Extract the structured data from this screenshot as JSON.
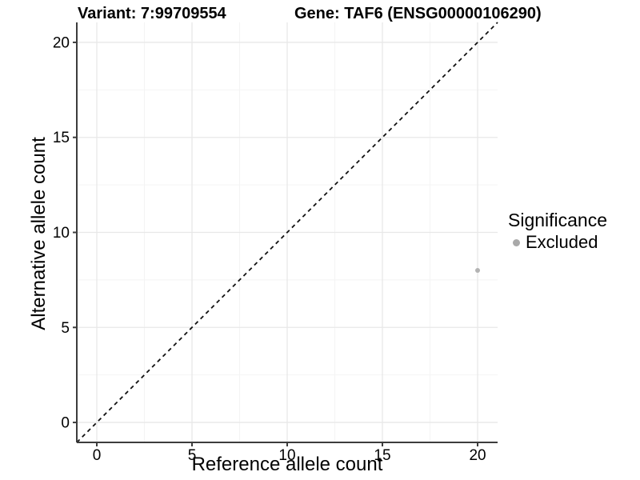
{
  "header": {
    "variant_title": "Variant: 7:99709554",
    "gene_title": "Gene: TAF6 (ENSG00000106290)"
  },
  "axes": {
    "x": {
      "label": "Reference allele count",
      "ticks": [
        0,
        5,
        10,
        15,
        20
      ]
    },
    "y": {
      "label": "Alternative allele count",
      "ticks": [
        0,
        5,
        10,
        15,
        20
      ]
    }
  },
  "legend": {
    "title": "Significance",
    "items": [
      {
        "label": "Excluded",
        "color": "#a9a9a9"
      }
    ]
  },
  "colors": {
    "axis": "#3c3c3c",
    "grid_major": "#e8e8e8",
    "grid_minor": "#f4f4f4",
    "text": "#000000",
    "point": "#b3b3b3",
    "reference_line": "#111111"
  },
  "chart_data": {
    "type": "scatter",
    "title": "Variant: 7:99709554    Gene: TAF6 (ENSG00000106290)",
    "xlabel": "Reference allele count",
    "ylabel": "Alternative allele count",
    "xlim": [
      -1.05,
      21.05
    ],
    "ylim": [
      -1.05,
      21.05
    ],
    "xticks": [
      0,
      5,
      10,
      15,
      20
    ],
    "yticks": [
      0,
      5,
      10,
      15,
      20
    ],
    "minor_gridlines": [
      2.5,
      7.5,
      12.5,
      17.5
    ],
    "grid": true,
    "legend_position": "right",
    "legend_title": "Significance",
    "series": [
      {
        "name": "Excluded",
        "color": "#b3b3b3",
        "points": [
          {
            "x": 20,
            "y": 8
          }
        ]
      }
    ],
    "reference_line": {
      "type": "identity y=x",
      "style": "dashed",
      "from": [
        -1.05,
        -1.05
      ],
      "to": [
        21.05,
        21.05
      ]
    }
  }
}
